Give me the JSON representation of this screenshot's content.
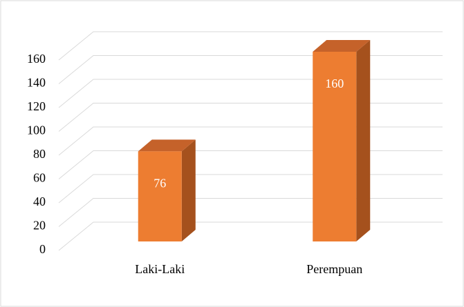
{
  "chart_data": {
    "type": "bar3d",
    "categories": [
      "Laki-Laki",
      "Perempuan"
    ],
    "values": [
      76,
      160
    ],
    "color": "#ed7d31",
    "ylim": [
      0,
      160
    ],
    "yticks": [
      0,
      20,
      40,
      60,
      80,
      100,
      120,
      140,
      160
    ],
    "grid": true,
    "data_labels": true
  }
}
